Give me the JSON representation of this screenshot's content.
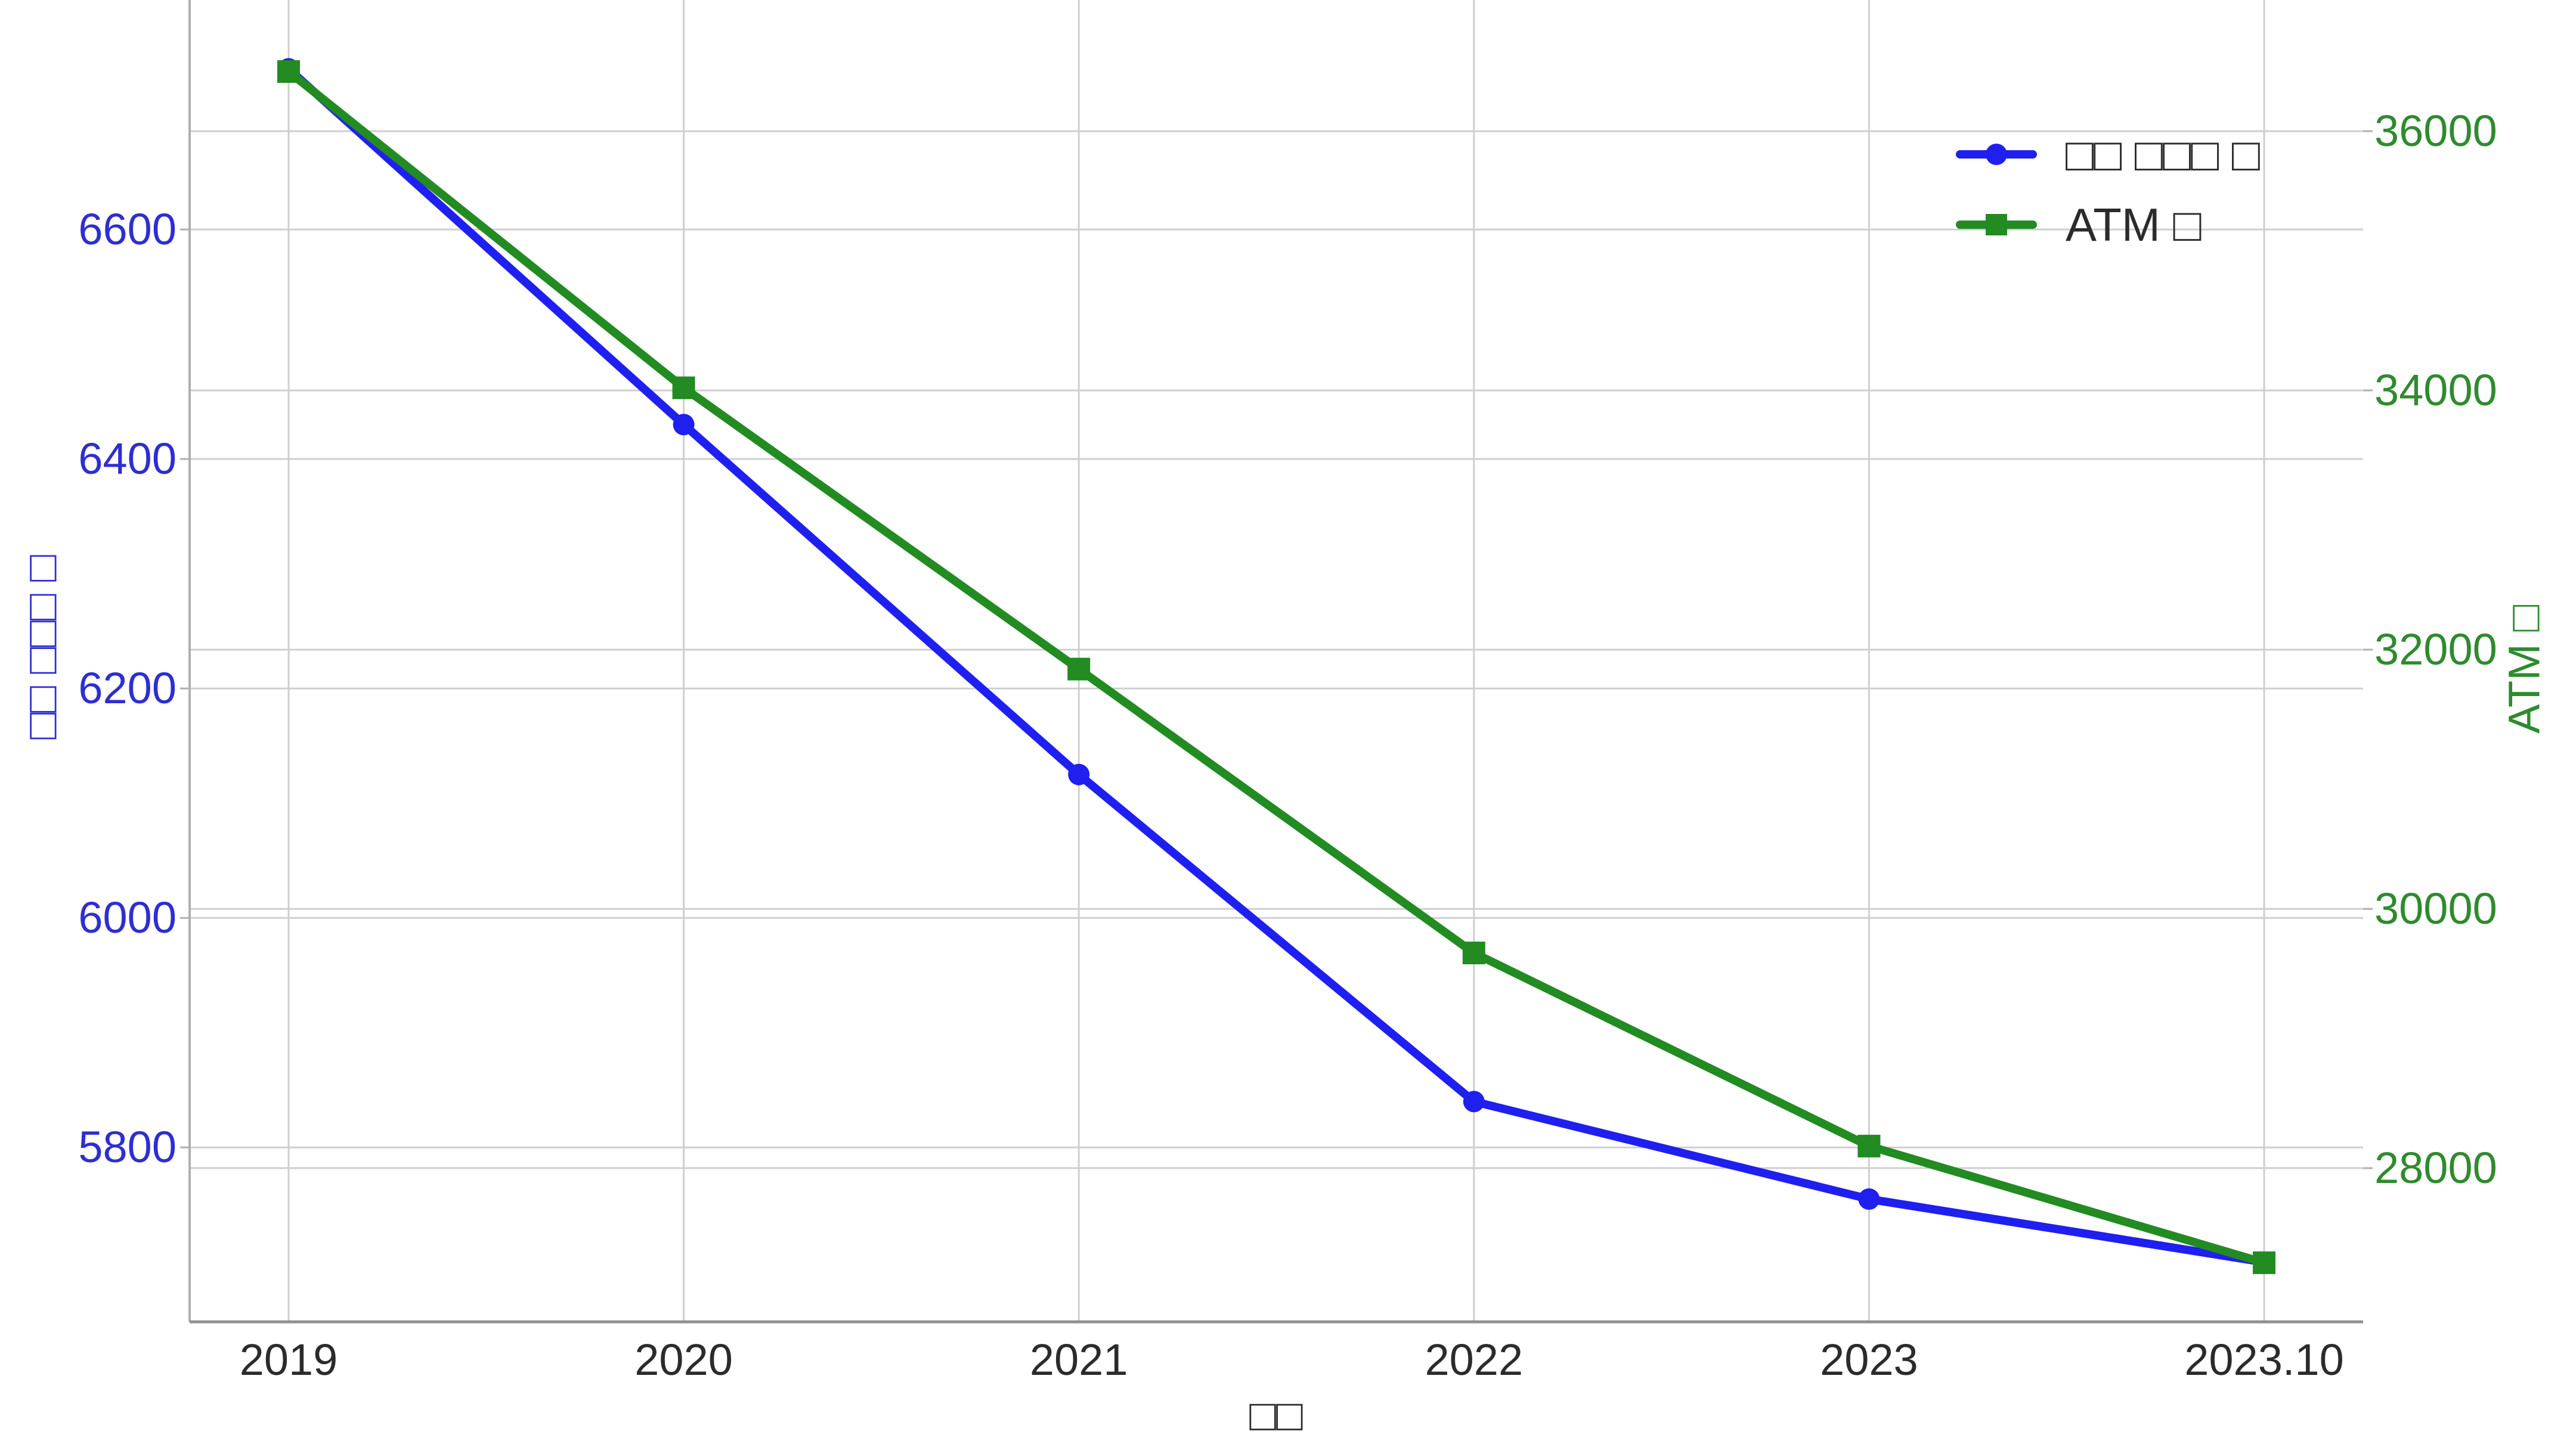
{
  "chart_data": {
    "type": "line",
    "title": "",
    "x_categories": [
      "2019",
      "2020",
      "2021",
      "2022",
      "2023",
      "2023.10"
    ],
    "series": [
      {
        "name": "□□ □□□ □",
        "axis": "left",
        "color": "#1f1ff0",
        "marker": "circle",
        "values": [
          6740,
          6430,
          6125,
          5840,
          5755,
          5700
        ]
      },
      {
        "name": "ATM □",
        "axis": "right",
        "color": "#228b22",
        "marker": "square",
        "values": [
          36460,
          34020,
          31850,
          29660,
          28170,
          27270
        ]
      }
    ],
    "left_axis": {
      "label": "□□ □□□ □",
      "ticks": [
        6600,
        6400,
        6200,
        6000,
        5800
      ],
      "range_bottom_top": [
        5648,
        6800
      ],
      "text_color": "#2e2ed2"
    },
    "right_axis": {
      "label": "ATM □",
      "ticks": [
        36000,
        34000,
        32000,
        30000,
        28000
      ],
      "range_bottom_top": [
        26814,
        37012
      ],
      "text_color": "#2e8b2e"
    },
    "x_axis": {
      "label": "□□",
      "text_color": "#2b2b2b"
    },
    "legend": {
      "position": "top-right",
      "frame": false,
      "items": [
        "□□ □□□ □",
        "ATM □"
      ]
    },
    "grid": true,
    "colors": {
      "gridline": "#cfcfcf",
      "left_spine": "#b0b0b0",
      "bottom_spine": "#919191"
    }
  }
}
